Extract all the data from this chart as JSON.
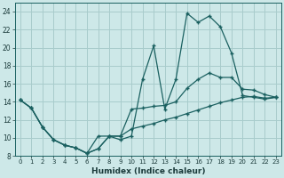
{
  "xlabel": "Humidex (Indice chaleur)",
  "xlim": [
    -0.5,
    23.5
  ],
  "ylim": [
    8,
    25
  ],
  "xticks": [
    0,
    1,
    2,
    3,
    4,
    5,
    6,
    7,
    8,
    9,
    10,
    11,
    12,
    13,
    14,
    15,
    16,
    17,
    18,
    19,
    20,
    21,
    22,
    23
  ],
  "yticks": [
    8,
    10,
    12,
    14,
    16,
    18,
    20,
    22,
    24
  ],
  "background_color": "#cde8e8",
  "grid_color": "#a8cccc",
  "line_color": "#1a6060",
  "line1_x": [
    0,
    1,
    2,
    3,
    4,
    5,
    6,
    7,
    8,
    9,
    10,
    11,
    12,
    13,
    14,
    15,
    16,
    17,
    18,
    19,
    20,
    21,
    22,
    23
  ],
  "line1_y": [
    14.2,
    13.3,
    11.2,
    9.8,
    9.2,
    8.9,
    8.3,
    8.8,
    10.2,
    9.8,
    10.2,
    16.5,
    20.2,
    13.2,
    16.5,
    23.8,
    22.8,
    23.5,
    22.3,
    19.4,
    14.7,
    14.5,
    14.3,
    14.5
  ],
  "line2_x": [
    0,
    1,
    2,
    3,
    4,
    5,
    6,
    7,
    8,
    9,
    10,
    11,
    12,
    13,
    14,
    15,
    16,
    17,
    18,
    19,
    20,
    21,
    22,
    23
  ],
  "line2_y": [
    14.2,
    13.3,
    11.2,
    9.8,
    9.2,
    8.9,
    8.3,
    10.2,
    10.2,
    10.2,
    13.2,
    13.3,
    13.5,
    13.6,
    14.0,
    15.5,
    16.5,
    17.2,
    16.7,
    16.7,
    15.4,
    15.3,
    14.8,
    14.5
  ],
  "line3_x": [
    0,
    1,
    2,
    3,
    4,
    5,
    6,
    7,
    8,
    9,
    10,
    11,
    12,
    13,
    14,
    15,
    16,
    17,
    18,
    19,
    20,
    21,
    22,
    23
  ],
  "line3_y": [
    14.2,
    13.3,
    11.2,
    9.8,
    9.2,
    8.9,
    8.3,
    8.8,
    10.2,
    10.2,
    11.0,
    11.3,
    11.6,
    12.0,
    12.3,
    12.7,
    13.1,
    13.5,
    13.9,
    14.2,
    14.5,
    14.6,
    14.4,
    14.5
  ]
}
